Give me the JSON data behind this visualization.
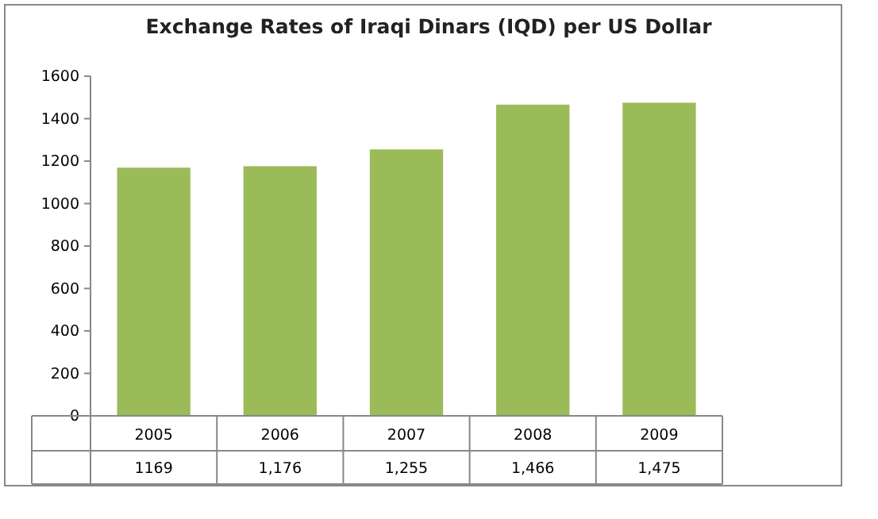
{
  "chart_data": {
    "type": "bar",
    "title": "Exchange Rates of Iraqi Dinars (IQD) per US Dollar",
    "categories": [
      "2005",
      "2006",
      "2007",
      "2008",
      "2009"
    ],
    "values": [
      1169,
      1176,
      1255,
      1466,
      1475
    ],
    "value_labels": [
      "1169",
      "1,176",
      "1,255",
      "1,466",
      "1,475"
    ],
    "color": "#9bbb59",
    "ylim": [
      0,
      1600
    ],
    "yticks": [
      0,
      200,
      400,
      600,
      800,
      1000,
      1200,
      1400,
      1600
    ],
    "grid": false
  }
}
